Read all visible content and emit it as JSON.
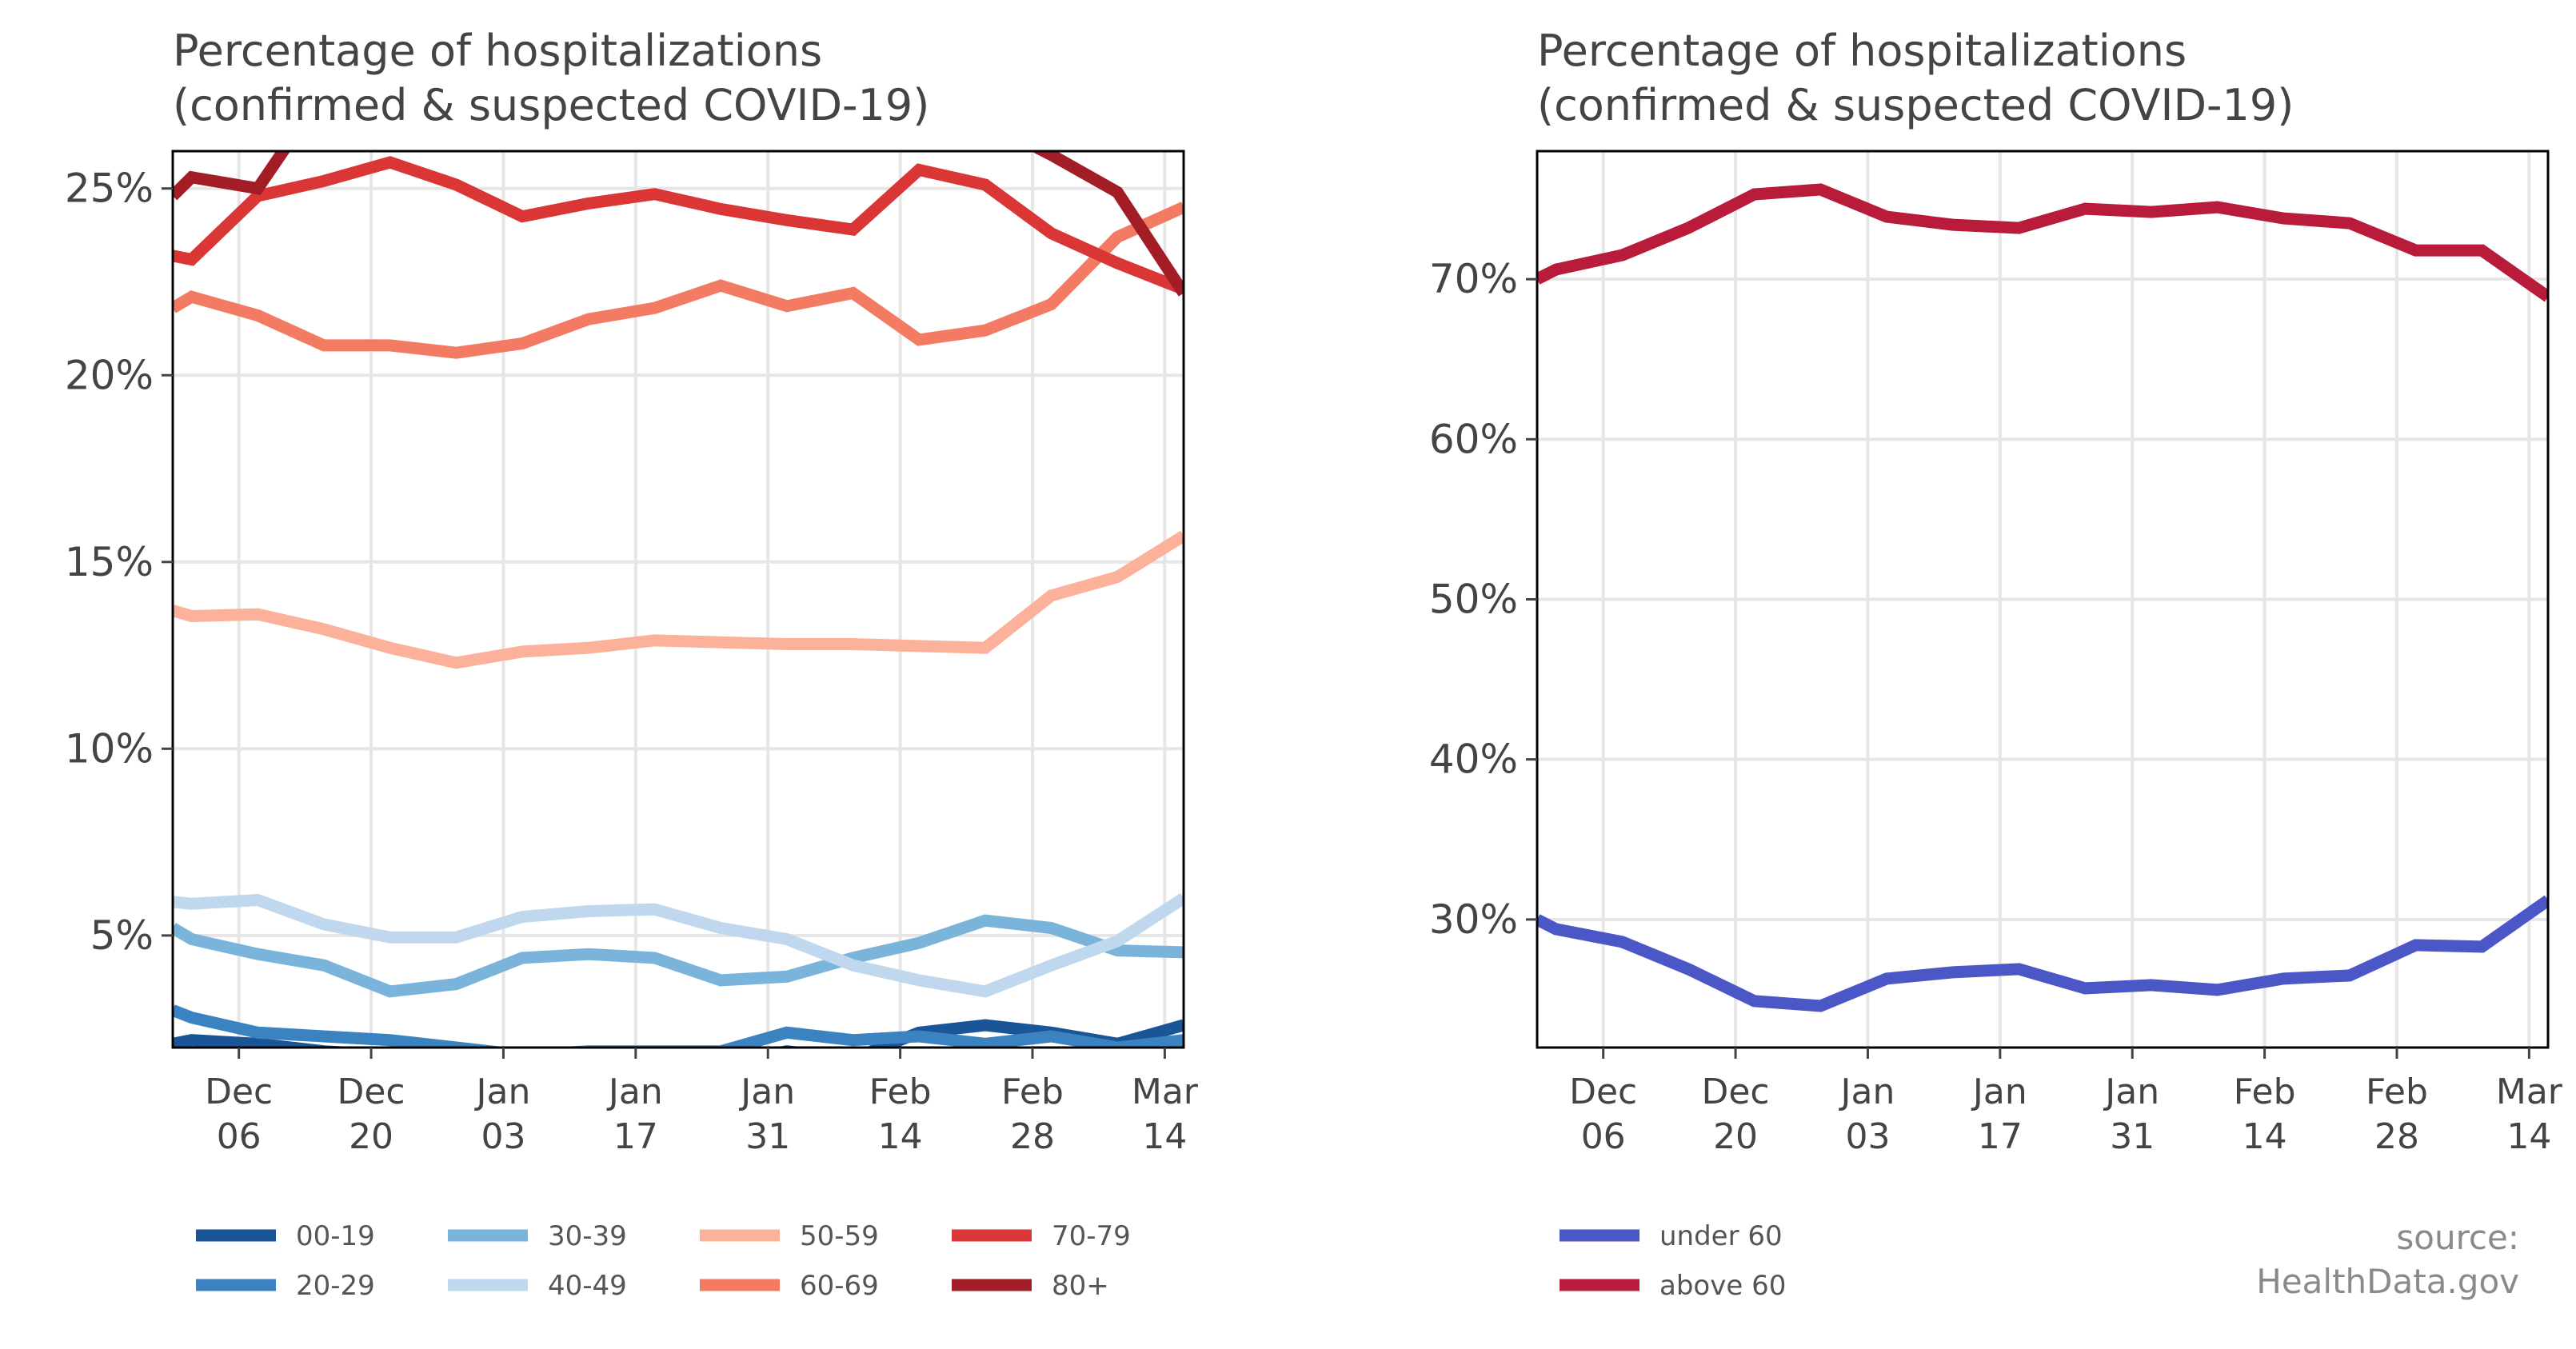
{
  "source": {
    "line1": "source:",
    "line2": "HealthData.gov"
  },
  "chart_data": [
    {
      "type": "line",
      "title": "Percentage of hospitalizations\n(confirmed & suspected COVID-19)",
      "title_line1": "Percentage of hospitalizations",
      "title_line2": "(confirmed & suspected COVID-19)",
      "xlabel": "",
      "ylabel": "",
      "x": [
        "2020-11-29",
        "2020-12-01",
        "2020-12-08",
        "2020-12-15",
        "2020-12-22",
        "2020-12-29",
        "2021-01-05",
        "2021-01-12",
        "2021-01-19",
        "2021-01-26",
        "2021-02-02",
        "2021-02-09",
        "2021-02-16",
        "2021-02-23",
        "2021-03-02",
        "2021-03-09",
        "2021-03-16"
      ],
      "xlim": [
        "2020-11-29",
        "2021-03-16"
      ],
      "x_ticks": [
        {
          "date": "2020-12-06",
          "line1": "Dec",
          "line2": "06"
        },
        {
          "date": "2020-12-20",
          "line1": "Dec",
          "line2": "20"
        },
        {
          "date": "2021-01-03",
          "line1": "Jan",
          "line2": "03"
        },
        {
          "date": "2021-01-17",
          "line1": "Jan",
          "line2": "17"
        },
        {
          "date": "2021-01-31",
          "line1": "Jan",
          "line2": "31"
        },
        {
          "date": "2021-02-14",
          "line1": "Feb",
          "line2": "14"
        },
        {
          "date": "2021-02-28",
          "line1": "Feb",
          "line2": "28"
        },
        {
          "date": "2021-03-14",
          "line1": "Mar",
          "line2": "14"
        }
      ],
      "ylim": [
        2,
        26
      ],
      "y_ticks": [
        {
          "value": 5,
          "label": "5%"
        },
        {
          "value": 10,
          "label": "10%"
        },
        {
          "value": 15,
          "label": "15%"
        },
        {
          "value": 20,
          "label": "20%"
        },
        {
          "value": 25,
          "label": "25%"
        }
      ],
      "grid": true,
      "legend_position": "below",
      "series": [
        {
          "name": "00-19",
          "color": "#1a5597",
          "values": [
            2.1,
            2.2,
            2.1,
            1.9,
            1.8,
            1.7,
            1.6,
            1.7,
            1.8,
            1.6,
            1.9,
            1.7,
            2.4,
            2.6,
            2.4,
            2.1,
            2.6
          ]
        },
        {
          "name": "20-29",
          "color": "#3b83c0",
          "values": [
            3.0,
            2.8,
            2.4,
            2.3,
            2.2,
            2.0,
            1.8,
            1.9,
            1.9,
            1.9,
            2.4,
            2.2,
            2.3,
            2.1,
            2.3,
            2.0,
            2.2
          ]
        },
        {
          "name": "30-39",
          "color": "#7ab4db",
          "values": [
            5.2,
            4.9,
            4.5,
            4.2,
            3.5,
            3.7,
            4.4,
            4.5,
            4.4,
            3.8,
            3.9,
            4.4,
            4.8,
            5.4,
            5.2,
            4.6,
            4.55
          ]
        },
        {
          "name": "40-49",
          "color": "#bfd8ed",
          "values": [
            5.9,
            5.85,
            5.95,
            5.3,
            4.95,
            4.95,
            5.5,
            5.65,
            5.7,
            5.2,
            4.9,
            4.2,
            3.8,
            3.5,
            4.2,
            4.85,
            6.0
          ]
        },
        {
          "name": "50-59",
          "color": "#fbb19a",
          "values": [
            13.7,
            13.55,
            13.6,
            13.2,
            12.7,
            12.3,
            12.6,
            12.7,
            12.9,
            12.85,
            12.8,
            12.8,
            12.75,
            12.7,
            14.1,
            14.6,
            15.7
          ]
        },
        {
          "name": "60-69",
          "color": "#f47b63",
          "values": [
            21.8,
            22.1,
            21.6,
            20.8,
            20.8,
            20.6,
            20.85,
            21.5,
            21.8,
            22.4,
            21.85,
            22.2,
            20.95,
            21.2,
            21.9,
            23.7,
            24.5
          ]
        },
        {
          "name": "70-79",
          "color": "#db3636",
          "values": [
            23.2,
            23.1,
            24.8,
            25.2,
            25.7,
            25.1,
            24.25,
            24.6,
            24.85,
            24.45,
            24.15,
            23.9,
            25.5,
            25.1,
            23.8,
            23.0,
            22.3
          ]
        },
        {
          "name": "80+",
          "color": "#a31d26",
          "values": [
            24.8,
            25.3,
            25.0,
            27.6,
            27.8,
            27.9,
            28.0,
            28.1,
            28.0,
            27.5,
            27.4,
            27.3,
            27.1,
            26.8,
            25.9,
            24.9,
            22.2
          ]
        }
      ]
    },
    {
      "type": "line",
      "title": "Percentage of hospitalizations\n(confirmed & suspected COVID-19)",
      "title_line1": "Percentage of hospitalizations",
      "title_line2": "(confirmed & suspected COVID-19)",
      "xlabel": "",
      "ylabel": "",
      "x": [
        "2020-11-29",
        "2020-12-01",
        "2020-12-08",
        "2020-12-15",
        "2020-12-22",
        "2020-12-29",
        "2021-01-05",
        "2021-01-12",
        "2021-01-19",
        "2021-01-26",
        "2021-02-02",
        "2021-02-09",
        "2021-02-16",
        "2021-02-23",
        "2021-03-02",
        "2021-03-09",
        "2021-03-16"
      ],
      "xlim": [
        "2020-11-29",
        "2021-03-16"
      ],
      "x_ticks": [
        {
          "date": "2020-12-06",
          "line1": "Dec",
          "line2": "06"
        },
        {
          "date": "2020-12-20",
          "line1": "Dec",
          "line2": "20"
        },
        {
          "date": "2021-01-03",
          "line1": "Jan",
          "line2": "03"
        },
        {
          "date": "2021-01-17",
          "line1": "Jan",
          "line2": "17"
        },
        {
          "date": "2021-01-31",
          "line1": "Jan",
          "line2": "31"
        },
        {
          "date": "2021-02-14",
          "line1": "Feb",
          "line2": "14"
        },
        {
          "date": "2021-02-28",
          "line1": "Feb",
          "line2": "28"
        },
        {
          "date": "2021-03-14",
          "line1": "Mar",
          "line2": "14"
        }
      ],
      "ylim": [
        22,
        78
      ],
      "y_ticks": [
        {
          "value": 30,
          "label": "30%"
        },
        {
          "value": 40,
          "label": "40%"
        },
        {
          "value": 50,
          "label": "50%"
        },
        {
          "value": 60,
          "label": "60%"
        },
        {
          "value": 70,
          "label": "70%"
        }
      ],
      "grid": true,
      "legend_position": "bottom-left",
      "series": [
        {
          "name": "under 60",
          "color": "#4b57c6",
          "values": [
            30.0,
            29.4,
            28.6,
            26.9,
            24.9,
            24.6,
            26.3,
            26.7,
            26.9,
            25.7,
            25.9,
            25.6,
            26.3,
            26.5,
            28.4,
            28.3,
            31.2
          ]
        },
        {
          "name": "above 60",
          "color": "#b81c3a",
          "values": [
            70.0,
            70.6,
            71.5,
            73.2,
            75.3,
            75.6,
            73.9,
            73.4,
            73.2,
            74.4,
            74.2,
            74.5,
            73.8,
            73.5,
            71.8,
            71.8,
            68.9
          ]
        }
      ]
    }
  ]
}
